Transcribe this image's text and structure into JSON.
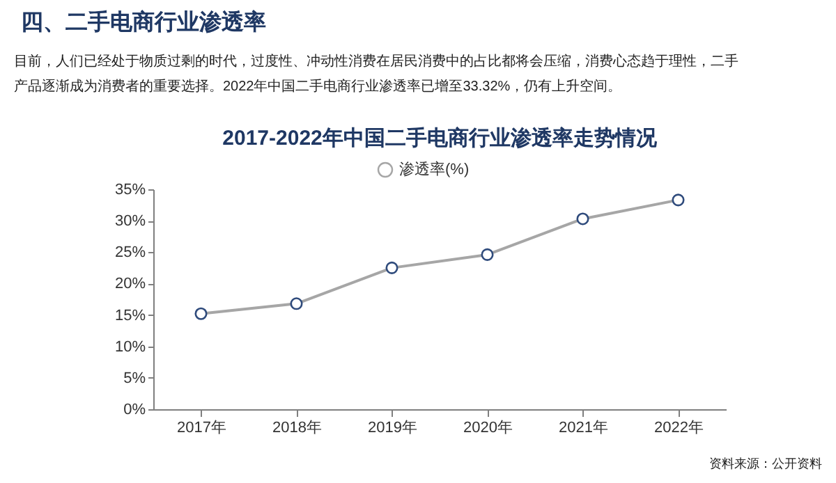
{
  "chart_data": {
    "type": "line",
    "title": "2017-2022年中国二手电商行业渗透率走势情况",
    "annotations": [
      "四、二手电商行业渗透率",
      "目前，人们已经处于物质过剩的时代，过度性、冲动性消费在居民消费中的占比都将会压缩，消费心态趋于理性，二手",
      "产品逐渐成为消费者的重要选择。2022年中国二手电商行业渗透率已增至33.32%，仍有上升空间。",
      "资料来源：公开资料"
    ],
    "categories": [
      "2017年",
      "2018年",
      "2019年",
      "2020年",
      "2021年",
      "2022年"
    ],
    "series": [
      {
        "name": "渗透率(%)",
        "color": "#a6a6a6",
        "values": [
          15.2,
          16.8,
          22.5,
          24.6,
          30.3,
          33.3
        ]
      }
    ],
    "ylim": [
      0,
      35
    ],
    "yticks": [
      {
        "value": 0,
        "label": "0%"
      },
      {
        "value": 5,
        "label": "5%"
      },
      {
        "value": 10,
        "label": "10%"
      },
      {
        "value": 15,
        "label": "15%"
      },
      {
        "value": 20,
        "label": "20%"
      },
      {
        "value": 25,
        "label": "25%"
      },
      {
        "value": 30,
        "label": "30%"
      },
      {
        "value": 35,
        "label": "35%"
      }
    ],
    "grid": false,
    "legend": "top",
    "marker": "circle",
    "line_style": "solid"
  }
}
